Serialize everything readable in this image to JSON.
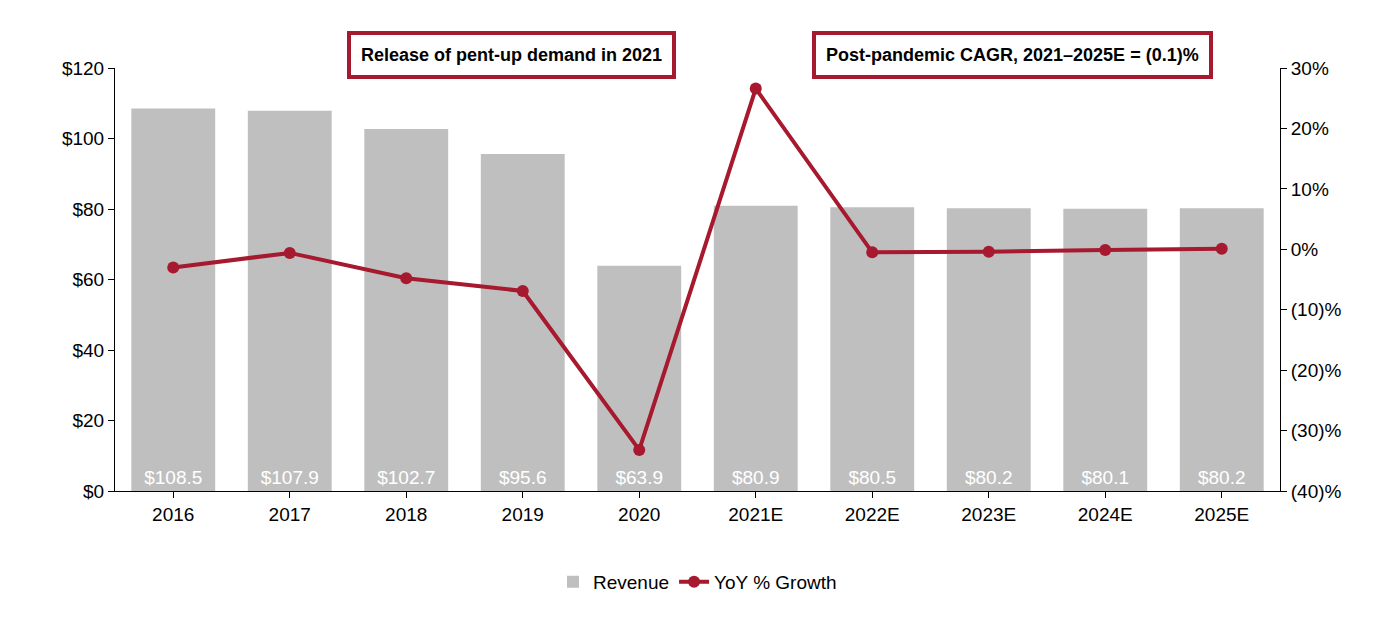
{
  "chart_data": {
    "type": "bar",
    "categories": [
      "2016",
      "2017",
      "2018",
      "2019",
      "2020",
      "2021E",
      "2022E",
      "2023E",
      "2024E",
      "2025E"
    ],
    "series": [
      {
        "name": "Revenue",
        "type": "bar",
        "color": "#bfbfbf",
        "values": [
          108.5,
          107.9,
          102.7,
          95.6,
          63.9,
          80.9,
          80.5,
          80.2,
          80.1,
          80.2
        ],
        "data_labels": true,
        "value_labels": [
          "$108.5",
          "$107.9",
          "$102.7",
          "$95.6",
          "$63.9",
          "$80.9",
          "$80.5",
          "$80.2",
          "$80.1",
          "$80.2"
        ]
      },
      {
        "name": "YoY % Growth",
        "type": "line",
        "color": "#a6192e",
        "axis": "y2",
        "marker": "circle",
        "line_style": "solid",
        "values": [
          -3.0,
          -0.6,
          -4.8,
          -6.9,
          -33.2,
          26.6,
          -0.5,
          -0.4,
          -0.1,
          0.1
        ]
      }
    ],
    "ylim": [
      0,
      120
    ],
    "yticks": [
      {
        "value": 0,
        "label": "$0"
      },
      {
        "value": 20,
        "label": "$20"
      },
      {
        "value": 40,
        "label": "$40"
      },
      {
        "value": 60,
        "label": "$60"
      },
      {
        "value": 80,
        "label": "$80"
      },
      {
        "value": 100,
        "label": "$100"
      },
      {
        "value": 120,
        "label": "$120"
      }
    ],
    "y2lim": [
      -40,
      30
    ],
    "y2ticks": [
      {
        "value": -40,
        "label": "(40)%"
      },
      {
        "value": -30,
        "label": "(30)%"
      },
      {
        "value": -20,
        "label": "(20)%"
      },
      {
        "value": -10,
        "label": "(10)%"
      },
      {
        "value": 0,
        "label": "0%"
      },
      {
        "value": 10,
        "label": "10%"
      },
      {
        "value": 20,
        "label": "20%"
      },
      {
        "value": 30,
        "label": "30%"
      }
    ],
    "annotations": [
      {
        "text": "Release of pent-up demand in 2021"
      },
      {
        "text": "Post-pandemic CAGR, 2021–2025E = (0.1)%"
      }
    ],
    "grid": false,
    "legend": "bottom"
  }
}
